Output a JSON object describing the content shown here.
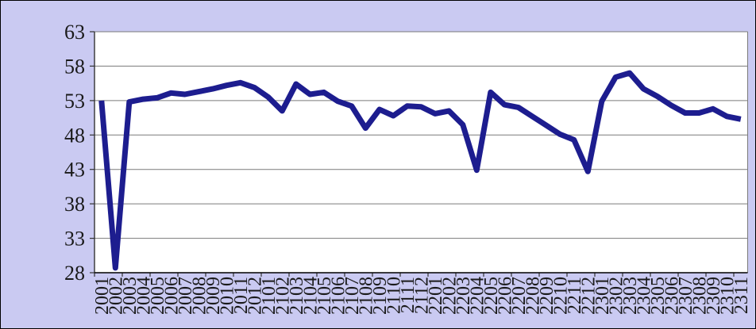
{
  "chart_data": {
    "type": "line",
    "title": "",
    "xlabel": "",
    "ylabel": "",
    "categories": [
      "2001",
      "2002",
      "2003",
      "2004",
      "2005",
      "2006",
      "2007",
      "2008",
      "2009",
      "2010",
      "2011",
      "2012",
      "2101",
      "2102",
      "2103",
      "2104",
      "2105",
      "2106",
      "2107",
      "2108",
      "2109",
      "2110",
      "2111",
      "2112",
      "2201",
      "2202",
      "2203",
      "2204",
      "2205",
      "2206",
      "2207",
      "2208",
      "2209",
      "2210",
      "2211",
      "2212",
      "2301",
      "2302",
      "2303",
      "2304",
      "2305",
      "2306",
      "2307",
      "2308",
      "2309",
      "2310",
      "2311"
    ],
    "values": [
      53.0,
      28.7,
      52.8,
      53.2,
      53.4,
      54.1,
      53.9,
      54.3,
      54.7,
      55.2,
      55.6,
      54.9,
      53.5,
      51.5,
      55.4,
      53.9,
      54.2,
      52.9,
      52.2,
      49.0,
      51.7,
      50.8,
      52.2,
      52.1,
      51.1,
      51.5,
      49.5,
      42.9,
      54.2,
      52.4,
      52.0,
      50.7,
      49.4,
      48.1,
      47.3,
      42.7,
      52.9,
      56.4,
      57.0,
      54.7,
      53.6,
      52.3,
      51.2,
      51.2,
      51.8,
      50.7,
      50.3
    ],
    "ylim": [
      28,
      63
    ],
    "yticks": [
      28,
      33,
      38,
      43,
      48,
      53,
      58,
      63
    ],
    "grid": true,
    "legend_position": "none"
  },
  "colors": {
    "background": "#CACAF2",
    "plot_background": "#FFFFFF",
    "series_line": "#1D1D8F",
    "gridline": "#7A7A7A",
    "axis_line": "#000000",
    "tick_label": "#1A1A1A",
    "frame_border": "#000000"
  }
}
